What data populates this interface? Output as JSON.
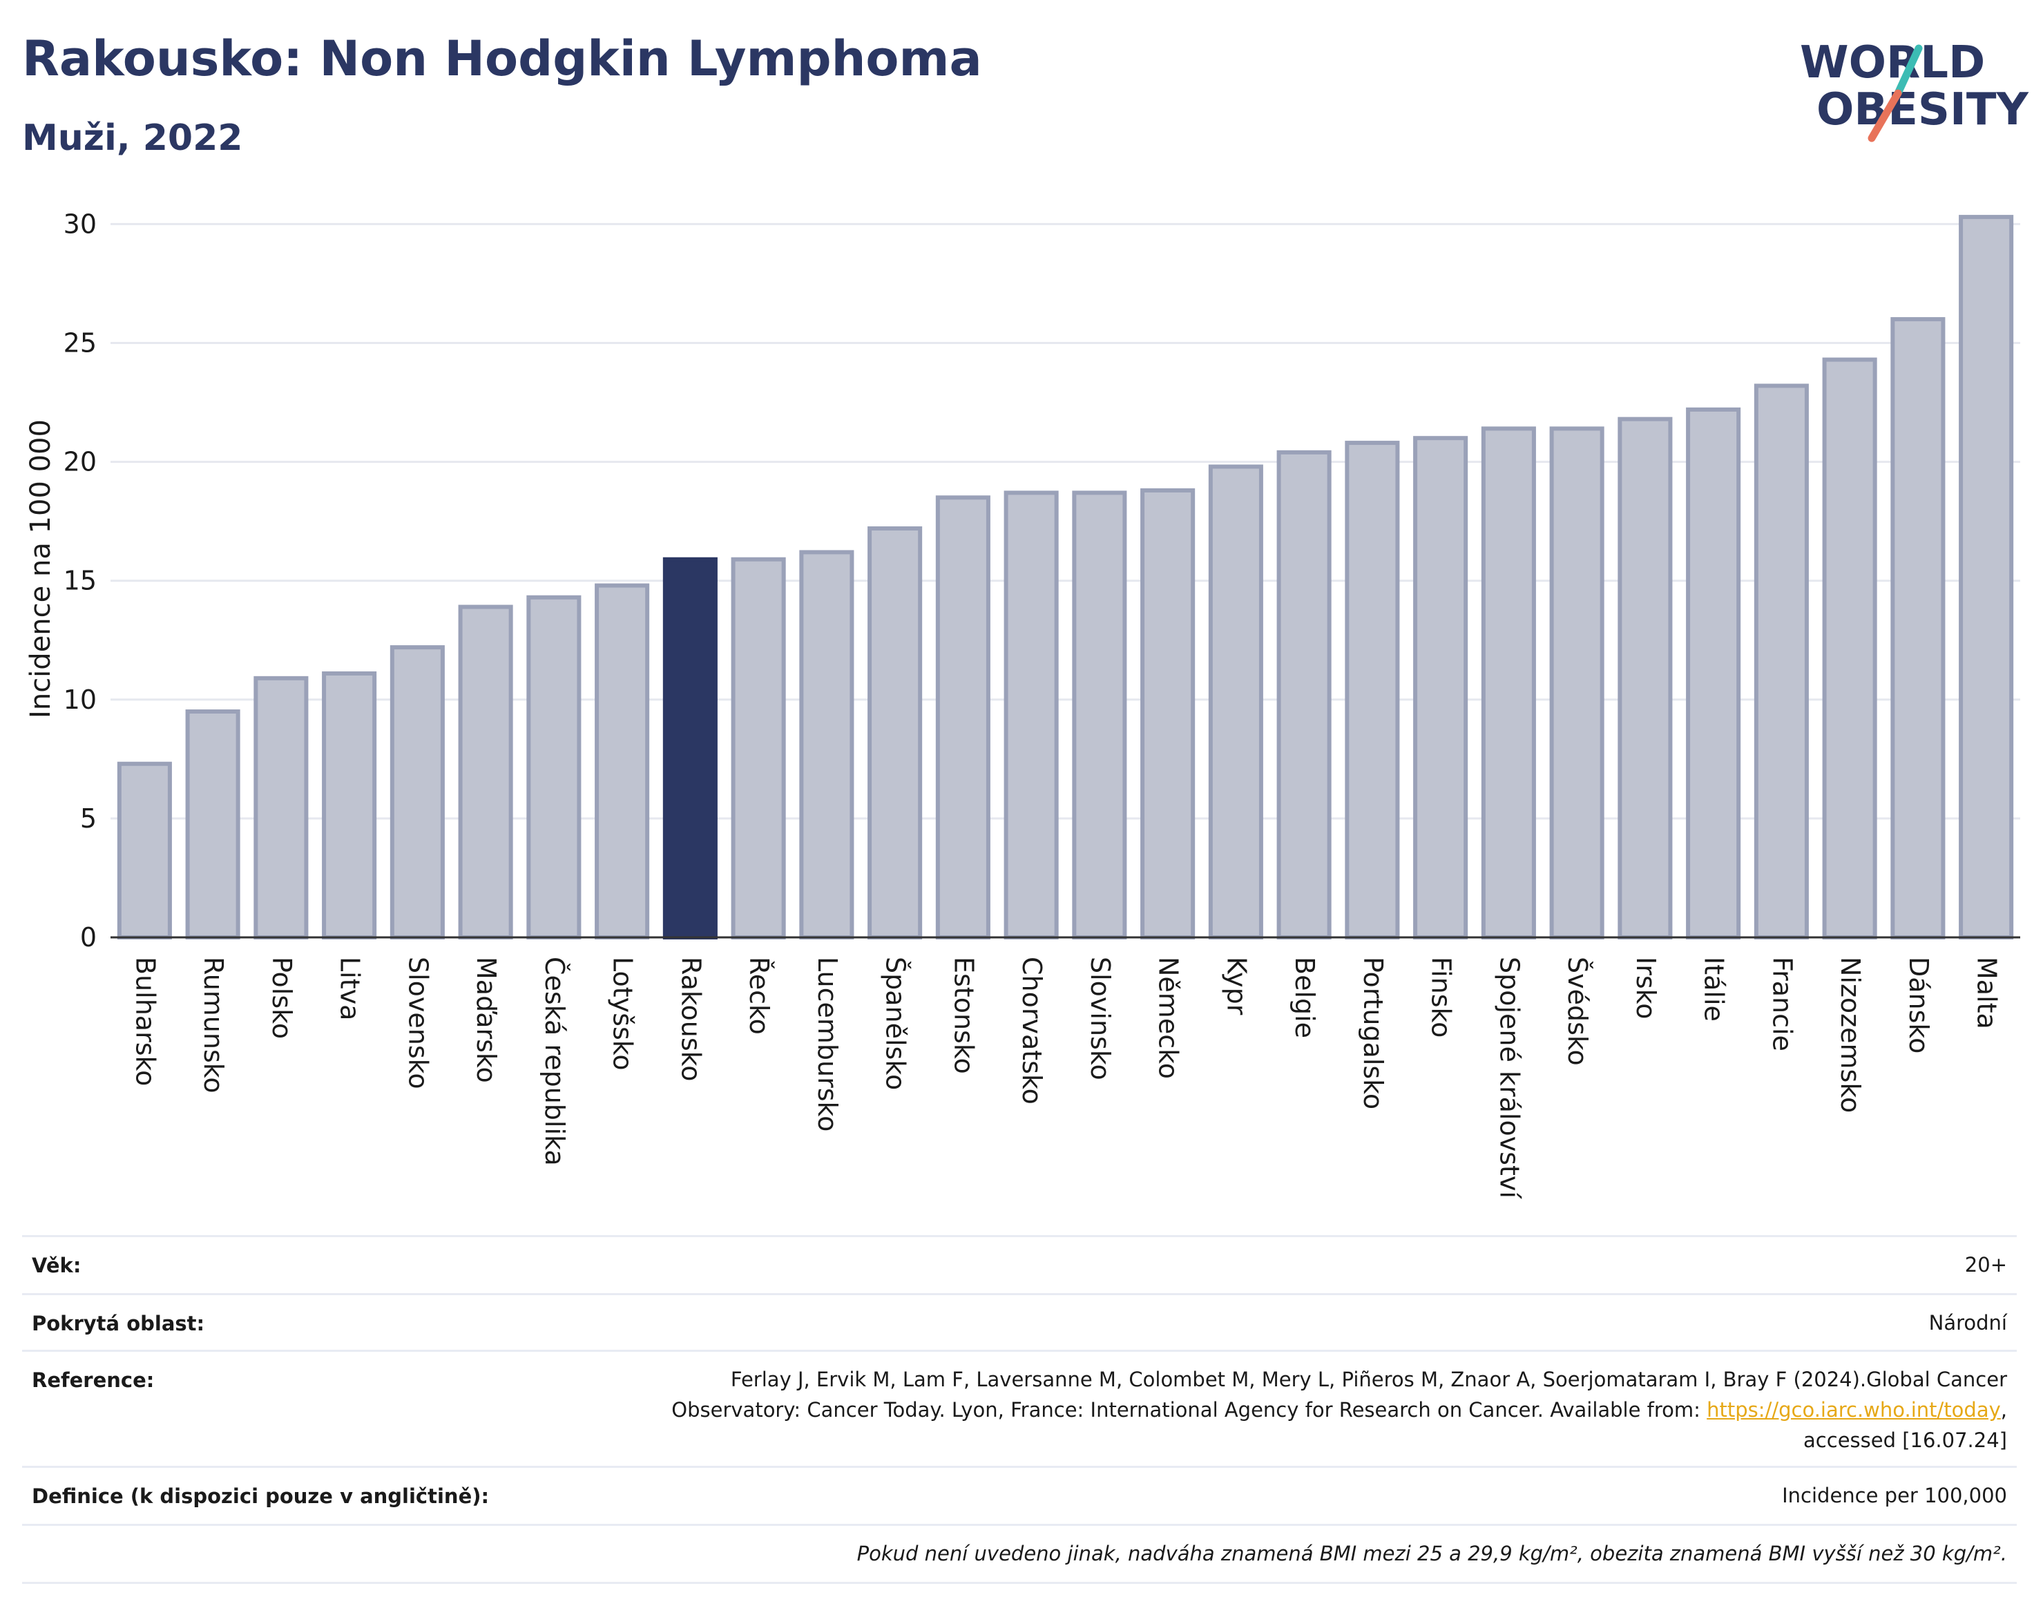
{
  "header": {
    "title": "Rakousko: Non Hodgkin Lymphoma",
    "subtitle": "Muži, 2022"
  },
  "logo": {
    "line1": "WORLD",
    "line2": "OBESITY",
    "slash_colors": [
      "#3cbcb4",
      "#e8735a"
    ],
    "text_color": "#2b3763"
  },
  "chart_data": {
    "type": "bar",
    "ylabel": "Incidence na 100 000",
    "xlabel": "",
    "ylim": [
      0,
      31
    ],
    "yticks": [
      0,
      5,
      10,
      15,
      20,
      25,
      30
    ],
    "grid": true,
    "highlight": "Rakousko",
    "colors": {
      "bar": "#bfc3d0",
      "bar_edge": "#9aa1b8",
      "highlight": "#2b3763",
      "grid": "#e6e8ef",
      "axis": "#333333"
    },
    "categories": [
      "Bulharsko",
      "Rumunsko",
      "Polsko",
      "Litva",
      "Slovensko",
      "Maďarsko",
      "Česká republika",
      "Lotyšsko",
      "Rakousko",
      "Řecko",
      "Lucembursko",
      "Španělsko",
      "Estonsko",
      "Chorvatsko",
      "Slovinsko",
      "Německo",
      "Kypr",
      "Belgie",
      "Portugalsko",
      "Finsko",
      "Spojené království",
      "Švédsko",
      "Irsko",
      "Itálie",
      "Francie",
      "Nizozemsko",
      "Dánsko",
      "Malta"
    ],
    "values": [
      7.3,
      9.5,
      10.9,
      11.1,
      12.2,
      13.9,
      14.3,
      14.8,
      15.9,
      15.9,
      16.2,
      17.2,
      18.5,
      18.7,
      18.7,
      18.8,
      19.8,
      20.4,
      20.8,
      21.0,
      21.4,
      21.4,
      21.8,
      22.2,
      23.2,
      24.3,
      26.0,
      30.3
    ]
  },
  "meta": {
    "age_label": "Věk:",
    "age_value": "20+",
    "area_label": "Pokrytá oblast:",
    "area_value": "Národní",
    "reference_label": "Reference:",
    "reference_text_1": "Ferlay J, Ervik M, Lam F, Laversanne M, Colombet M, Mery L, Piñeros M, Znaor A, Soerjomataram I, Bray F (2024).Global Cancer",
    "reference_text_2": "Observatory: Cancer Today. Lyon, France: International Agency for Research on Cancer. Available from: ",
    "reference_link": "https://gco.iarc.who.int/today",
    "reference_text_3": ",",
    "reference_text_4": "accessed [16.07.24]",
    "definition_label": "Definice (k dispozici pouze v angličtině):",
    "definition_value": "Incidence per 100,000",
    "note": "Pokud není uvedeno jinak, nadváha znamená BMI mezi 25 a 29,9 kg/m², obezita znamená BMI vyšší než 30 kg/m²."
  }
}
